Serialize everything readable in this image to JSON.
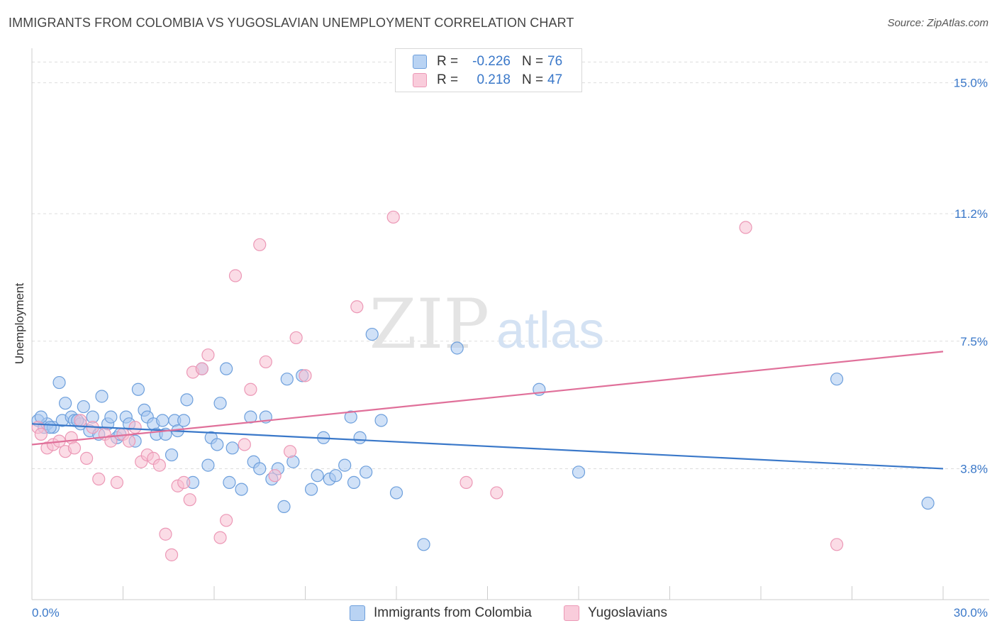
{
  "title": "IMMIGRANTS FROM COLOMBIA VS YUGOSLAVIAN UNEMPLOYMENT CORRELATION CHART",
  "source": "Source: ZipAtlas.com",
  "watermark": {
    "zip": "ZIP",
    "atlas": "atlas"
  },
  "colors": {
    "blue": "#3a78c9",
    "blue_fill": "#a9c9f0",
    "blue_stroke": "#6d9fdc",
    "pink": "#e0709a",
    "pink_fill": "#f7c0d2",
    "pink_stroke": "#ec98b6",
    "grid": "#dddddd",
    "axis_label": "#3a78c9"
  },
  "legend": {
    "rows": [
      {
        "r_label": "R =",
        "r_value": "-0.226",
        "n_label": "N =",
        "n_value": "76"
      },
      {
        "r_label": "R =",
        "r_value": "0.218",
        "n_label": "N =",
        "n_value": "47"
      }
    ]
  },
  "bottom_legend": [
    "Immigrants from Colombia",
    "Yugoslavians"
  ],
  "chart_data": {
    "type": "scatter",
    "title": "IMMIGRANTS FROM COLOMBIA VS YUGOSLAVIAN UNEMPLOYMENT CORRELATION CHART",
    "xlabel": "",
    "ylabel": "Unemployment",
    "xlim": [
      0,
      30
    ],
    "ylim": [
      0,
      16
    ],
    "x_tick_labels": [
      "0.0%",
      "30.0%"
    ],
    "y_ticks": [
      3.8,
      7.5,
      11.2,
      15.0
    ],
    "y_tick_labels": [
      "3.8%",
      "7.5%",
      "11.2%",
      "15.0%"
    ],
    "grid": true,
    "legend_position": "top-center",
    "series": [
      {
        "name": "Immigrants from Colombia",
        "color": "blue",
        "trend": {
          "x": [
            0,
            30
          ],
          "y": [
            5.1,
            3.8
          ]
        },
        "points": [
          [
            0.2,
            5.2
          ],
          [
            0.4,
            5.0
          ],
          [
            0.5,
            5.1
          ],
          [
            0.7,
            5.0
          ],
          [
            0.9,
            6.3
          ],
          [
            1.0,
            5.2
          ],
          [
            1.1,
            5.7
          ],
          [
            1.3,
            5.3
          ],
          [
            1.4,
            5.2
          ],
          [
            1.6,
            5.1
          ],
          [
            1.7,
            5.6
          ],
          [
            1.9,
            4.9
          ],
          [
            2.0,
            5.3
          ],
          [
            2.2,
            4.8
          ],
          [
            2.3,
            5.9
          ],
          [
            2.5,
            5.1
          ],
          [
            2.6,
            5.3
          ],
          [
            2.8,
            4.7
          ],
          [
            2.9,
            4.8
          ],
          [
            3.1,
            5.3
          ],
          [
            3.2,
            5.1
          ],
          [
            3.4,
            4.6
          ],
          [
            3.5,
            6.1
          ],
          [
            3.7,
            5.5
          ],
          [
            3.8,
            5.3
          ],
          [
            4.0,
            5.1
          ],
          [
            4.1,
            4.8
          ],
          [
            4.3,
            5.2
          ],
          [
            4.4,
            4.8
          ],
          [
            4.6,
            4.2
          ],
          [
            4.7,
            5.2
          ],
          [
            4.8,
            4.9
          ],
          [
            5.0,
            5.2
          ],
          [
            5.1,
            5.8
          ],
          [
            5.3,
            3.4
          ],
          [
            5.6,
            6.7
          ],
          [
            5.8,
            3.9
          ],
          [
            5.9,
            4.7
          ],
          [
            6.1,
            4.5
          ],
          [
            6.2,
            5.7
          ],
          [
            6.4,
            6.7
          ],
          [
            6.5,
            3.4
          ],
          [
            6.6,
            4.4
          ],
          [
            6.9,
            3.2
          ],
          [
            7.2,
            5.3
          ],
          [
            7.3,
            4.0
          ],
          [
            7.5,
            3.8
          ],
          [
            7.7,
            5.3
          ],
          [
            7.9,
            3.5
          ],
          [
            8.1,
            3.8
          ],
          [
            8.3,
            2.7
          ],
          [
            8.4,
            6.4
          ],
          [
            8.6,
            4.0
          ],
          [
            8.9,
            6.5
          ],
          [
            9.2,
            3.2
          ],
          [
            9.4,
            3.6
          ],
          [
            9.6,
            4.7
          ],
          [
            9.8,
            3.5
          ],
          [
            10.0,
            3.6
          ],
          [
            10.3,
            3.9
          ],
          [
            10.5,
            5.3
          ],
          [
            10.6,
            3.4
          ],
          [
            10.8,
            4.7
          ],
          [
            11.0,
            3.7
          ],
          [
            11.2,
            7.7
          ],
          [
            11.5,
            5.2
          ],
          [
            12.0,
            3.1
          ],
          [
            12.9,
            1.6
          ],
          [
            14.0,
            7.3
          ],
          [
            16.7,
            6.1
          ],
          [
            18.0,
            3.7
          ],
          [
            26.5,
            6.4
          ],
          [
            29.5,
            2.8
          ],
          [
            0.3,
            5.3
          ],
          [
            0.6,
            5.0
          ],
          [
            1.5,
            5.2
          ]
        ]
      },
      {
        "name": "Yugoslavians",
        "color": "pink",
        "trend": {
          "x": [
            0,
            30
          ],
          "y": [
            4.5,
            7.2
          ]
        },
        "points": [
          [
            0.2,
            5.0
          ],
          [
            0.3,
            4.8
          ],
          [
            0.5,
            4.4
          ],
          [
            0.7,
            4.5
          ],
          [
            0.9,
            4.6
          ],
          [
            1.1,
            4.3
          ],
          [
            1.3,
            4.7
          ],
          [
            1.4,
            4.4
          ],
          [
            1.6,
            5.2
          ],
          [
            1.8,
            4.1
          ],
          [
            2.0,
            5.0
          ],
          [
            2.2,
            3.5
          ],
          [
            2.4,
            4.8
          ],
          [
            2.6,
            4.6
          ],
          [
            2.8,
            3.4
          ],
          [
            3.0,
            4.8
          ],
          [
            3.2,
            4.6
          ],
          [
            3.4,
            5.0
          ],
          [
            3.6,
            4.0
          ],
          [
            3.8,
            4.2
          ],
          [
            4.0,
            4.1
          ],
          [
            4.2,
            3.9
          ],
          [
            4.4,
            1.9
          ],
          [
            4.6,
            1.3
          ],
          [
            4.8,
            3.3
          ],
          [
            5.0,
            3.4
          ],
          [
            5.2,
            2.9
          ],
          [
            5.3,
            6.6
          ],
          [
            5.6,
            6.7
          ],
          [
            5.8,
            7.1
          ],
          [
            6.2,
            1.8
          ],
          [
            6.4,
            2.3
          ],
          [
            6.7,
            9.4
          ],
          [
            7.0,
            4.5
          ],
          [
            7.2,
            6.1
          ],
          [
            7.5,
            10.3
          ],
          [
            7.7,
            6.9
          ],
          [
            8.0,
            3.6
          ],
          [
            8.5,
            4.3
          ],
          [
            8.7,
            7.6
          ],
          [
            9.0,
            6.5
          ],
          [
            10.7,
            8.5
          ],
          [
            11.9,
            11.1
          ],
          [
            14.3,
            3.4
          ],
          [
            15.3,
            3.1
          ],
          [
            23.5,
            10.8
          ],
          [
            26.5,
            1.6
          ]
        ]
      }
    ]
  }
}
